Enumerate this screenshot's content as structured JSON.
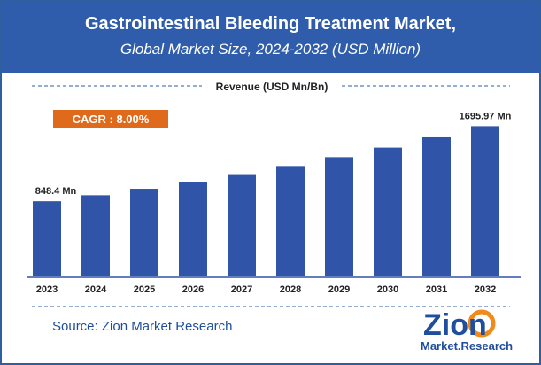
{
  "header": {
    "title": "Gastrointestinal Bleeding Treatment Market,",
    "subtitle": "Global Market Size, 2024-2032 (USD Million)"
  },
  "source": "Source: Zion Market Research",
  "logo": {
    "line1": "Zion",
    "line2": "Market.Research"
  },
  "badge": {
    "text": "CAGR : 8.00%"
  },
  "colors": {
    "header_bg": "#2f5cab",
    "bar": "#2f54a8",
    "badge_bg": "#e06a1b",
    "border": "#2f5f9e",
    "logo_blue": "#1f4e9c",
    "logo_orange": "#f08a1c"
  },
  "chart_data": {
    "type": "bar",
    "title": "Revenue (USD Mn/Bn)",
    "categories": [
      "2023",
      "2024",
      "2025",
      "2026",
      "2027",
      "2028",
      "2029",
      "2030",
      "2031",
      "2032"
    ],
    "values": [
      848.4,
      916.3,
      989.6,
      1068.8,
      1154.3,
      1246.6,
      1346.3,
      1454.0,
      1570.3,
      1695.97
    ],
    "data_labels": [
      {
        "index": 0,
        "text": "848.4 Mn"
      },
      {
        "index": 9,
        "text": "1695.97 Mn"
      }
    ],
    "ylim": [
      0,
      1800
    ],
    "grid": false,
    "legend": "none"
  }
}
